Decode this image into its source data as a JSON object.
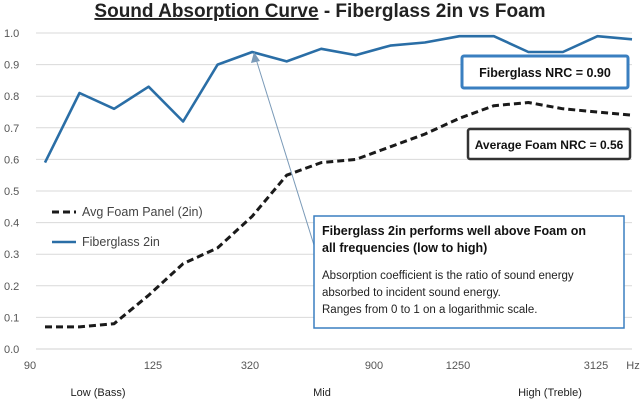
{
  "chart_data": {
    "type": "line",
    "title_main": "Sound Absorption Curve",
    "title_rest": " - Fiberglass 2in vs Foam",
    "x_tick_labels": [
      "90",
      "125",
      "320",
      "900",
      "1250",
      "3125",
      "Hz"
    ],
    "x_band_labels": [
      "Low (Bass)",
      "Mid",
      "High (Treble)"
    ],
    "ylim": [
      0,
      1
    ],
    "y_ticks": [
      "0.0",
      "0.1",
      "0.2",
      "0.3",
      "0.4",
      "0.5",
      "0.6",
      "0.7",
      "0.8",
      "0.9",
      "1.0"
    ],
    "grid": true,
    "legend_position": "left",
    "series": [
      {
        "name": "Avg Foam Panel (2in)",
        "style": "dashed",
        "color": "#1a1a1a",
        "values": [
          0.07,
          0.07,
          0.08,
          0.17,
          0.27,
          0.32,
          0.42,
          0.55,
          0.59,
          0.6,
          0.64,
          0.68,
          0.73,
          0.77,
          0.78,
          0.76,
          0.75,
          0.74
        ]
      },
      {
        "name": "Fiberglass 2in",
        "style": "solid",
        "color": "#2a6ea6",
        "values": [
          0.59,
          0.81,
          0.76,
          0.83,
          0.72,
          0.9,
          0.94,
          0.91,
          0.95,
          0.93,
          0.96,
          0.97,
          0.99,
          0.99,
          0.94,
          0.94,
          0.99,
          0.98
        ]
      }
    ],
    "annotations": {
      "fiberglass_nrc": "Fiberglass NRC = 0.90",
      "foam_nrc": "Average Foam NRC = 0.56",
      "callout_title": "Fiberglass 2in performs well above Foam on all frequencies (low to high)",
      "callout_body_1": "Absorption coefficient is the ratio of sound energy absorbed to incident sound energy.",
      "callout_body_2": "Ranges from 0 to 1 on a logarithmic scale."
    },
    "colors": {
      "fiberglass": "#2a6ea6",
      "foam": "#1a1a1a",
      "callout_border": "#3a7fc0",
      "grid": "#d9d9d9"
    }
  }
}
